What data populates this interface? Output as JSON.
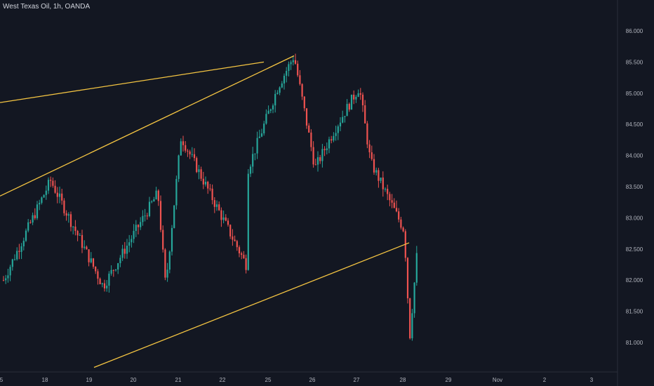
{
  "title": "West Texas Oil, 1h, OANDA",
  "colors": {
    "background": "#131722",
    "up": "#26a69a",
    "down": "#ef5350",
    "trendline": "#f5c542",
    "axis_text": "#b2b5be",
    "axis_line": "#2a2e39"
  },
  "chart_data": {
    "type": "candlestick",
    "title": "West Texas Oil, 1h, OANDA",
    "y_ticks": [
      "86.000",
      "85.500",
      "85.000",
      "84.500",
      "84.000",
      "83.500",
      "83.000",
      "82.500",
      "82.000",
      "81.500",
      "81.000"
    ],
    "x_ticks": [
      "5",
      "18",
      "19",
      "20",
      "21",
      "22",
      "25",
      "26",
      "27",
      "28",
      "29",
      "Nov",
      "2",
      "3"
    ],
    "ylim": [
      80.6,
      86.3
    ],
    "grid": false,
    "anchors": [
      [
        "5",
        82.0
      ],
      [
        "18",
        83.6
      ],
      [
        "19",
        81.9
      ],
      [
        "20",
        83.4
      ],
      [
        "20",
        81.9
      ],
      [
        "21",
        84.3
      ],
      [
        "22",
        82.2
      ],
      [
        "22",
        83.0
      ],
      [
        "25",
        85.1
      ],
      [
        "25",
        85.6
      ],
      [
        "26",
        83.8
      ],
      [
        "26",
        84.4
      ],
      [
        "27",
        85.1
      ],
      [
        "27",
        83.9
      ],
      [
        "28",
        82.8
      ],
      [
        "28",
        81.1
      ],
      [
        "28",
        82.4
      ]
    ],
    "trendlines": [
      {
        "from": [
          "5",
          84.85
        ],
        "to": [
          "25",
          85.5
        ]
      },
      {
        "from": [
          "5",
          83.35
        ],
        "to": [
          "25",
          85.6
        ]
      },
      {
        "from": [
          "19",
          80.6
        ],
        "to": [
          "28",
          82.6
        ]
      }
    ]
  }
}
